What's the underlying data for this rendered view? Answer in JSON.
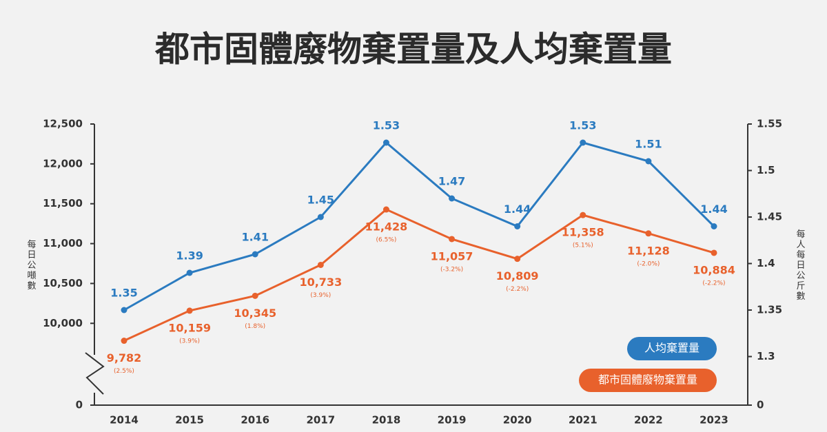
{
  "chart_data": {
    "type": "line",
    "title": "都市固體廢物棄置量及人均棄置量",
    "y_label": "每日公噸數",
    "y2_label": "每人每日公斤數",
    "categories": [
      "2014",
      "2015",
      "2016",
      "2017",
      "2018",
      "2019",
      "2020",
      "2021",
      "2022",
      "2023"
    ],
    "series": [
      {
        "name": "人均棄置量",
        "color": "#2b7bc0",
        "axis": "y2",
        "values": [
          1.35,
          1.39,
          1.41,
          1.45,
          1.53,
          1.47,
          1.44,
          1.53,
          1.51,
          1.44
        ]
      },
      {
        "name": "都市固體廢物棄置量",
        "color": "#e8612c",
        "axis": "y",
        "values": [
          9782,
          10159,
          10345,
          10733,
          11428,
          11057,
          10809,
          11358,
          11128,
          10884
        ],
        "value_labels": [
          "9,782",
          "10,159",
          "10,345",
          "10,733",
          "11,428",
          "11,057",
          "10,809",
          "11,358",
          "11,128",
          "10,884"
        ],
        "change_labels": [
          "(2.5%)",
          "(3.9%)",
          "(1.8%)",
          "(3.9%)",
          "(6.5%)",
          "(-3.2%)",
          "(-2.2%)",
          "(5.1%)",
          "(-2.0%)",
          "(-2.2%)"
        ]
      }
    ],
    "ylim": [
      9000,
      12500
    ],
    "yticks": [
      0,
      {
        "value": 10000,
        "label": "10,000"
      },
      {
        "value": 10500,
        "label": "10,500"
      },
      {
        "value": 11000,
        "label": "11,000"
      },
      {
        "value": 11500,
        "label": "11,500"
      },
      {
        "value": 12000,
        "label": "12,000"
      },
      {
        "value": 12500,
        "label": "12,500"
      }
    ],
    "y2lim": [
      1.25,
      1.55
    ],
    "y2ticks": [
      0,
      1.3,
      1.35,
      1.4,
      1.45,
      1.5,
      1.55
    ],
    "axis_break": true,
    "legend": "lower right",
    "grid": false
  }
}
